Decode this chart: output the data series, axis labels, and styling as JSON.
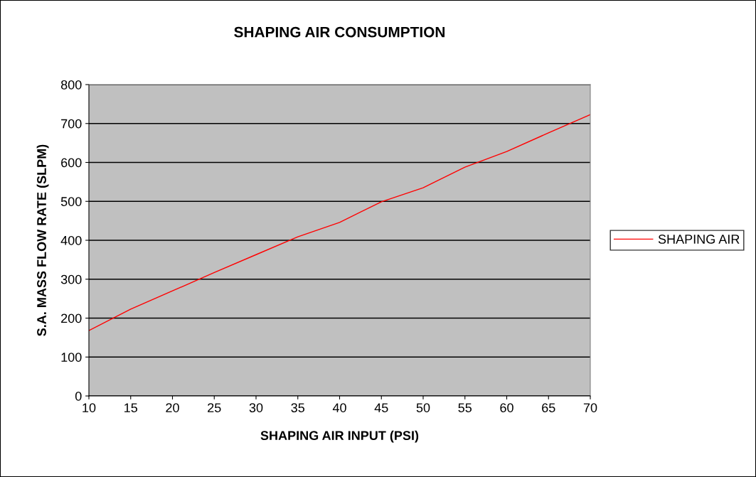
{
  "chart_data": {
    "type": "line",
    "title": "SHAPING AIR CONSUMPTION",
    "xlabel": "SHAPING AIR INPUT (PSI)",
    "ylabel": "S.A. MASS FLOW RATE (SLPM)",
    "x": [
      10,
      15,
      20,
      25,
      30,
      35,
      40,
      45,
      50,
      55,
      60,
      65,
      70
    ],
    "series": [
      {
        "name": "SHAPING AIR",
        "color": "#ff0000",
        "values": [
          168,
          223,
          270,
          317,
          363,
          409,
          446,
          499,
          535,
          588,
          628,
          676,
          723
        ]
      }
    ],
    "xlim": [
      10,
      70
    ],
    "xticks": [
      10,
      15,
      20,
      25,
      30,
      35,
      40,
      45,
      50,
      55,
      60,
      65,
      70
    ],
    "ylim": [
      0,
      800
    ],
    "yticks": [
      0,
      100,
      200,
      300,
      400,
      500,
      600,
      700,
      800
    ],
    "grid": "y",
    "legend": "right",
    "marker": "none",
    "line_style": "solid"
  }
}
